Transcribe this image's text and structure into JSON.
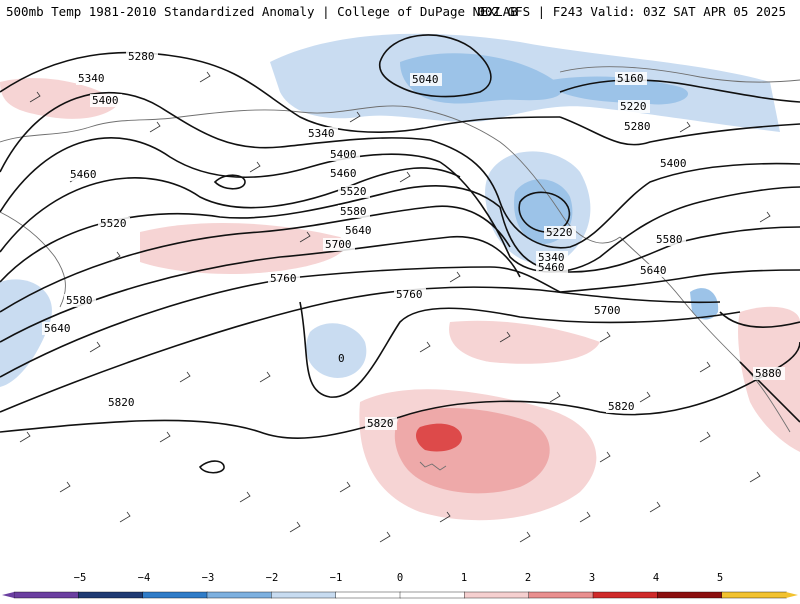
{
  "header": {
    "left_title": "500mb Temp 1981-2010 Standardized Anomaly | College of DuPage NEXLAB",
    "right_title": "00Z GFS | F243 Valid: 03Z SAT APR 05 2025"
  },
  "map": {
    "field": "500mb Temp Standardized Anomaly",
    "contour_labels": [
      "5280",
      "5340",
      "5400",
      "5460",
      "5520",
      "5580",
      "5640",
      "5040",
      "5160",
      "5220",
      "5280",
      "5340",
      "5400",
      "5460",
      "5520",
      "5580",
      "5640",
      "5700",
      "5760",
      "5760",
      "5700",
      "5220",
      "5340",
      "5460",
      "5400",
      "5580",
      "5640",
      "5820",
      "5820",
      "5820",
      "5880"
    ],
    "low_marker": "0",
    "anomaly_colors": {
      "neg5": "#6a3d9a",
      "neg4": "#233a74",
      "neg3": "#3b82c9",
      "neg2": "#7fb2e0",
      "neg1": "#c9dcf1",
      "zero": "#ffffff",
      "pos1": "#f6d4d4",
      "pos2": "#eea9a9",
      "pos3": "#dd4a4a",
      "pos4": "#b01a1a",
      "pos5": "#7a0c0c"
    }
  },
  "colorbar": {
    "ticks": [
      "−5",
      "−4",
      "−3",
      "−2",
      "−1",
      "0",
      "1",
      "2",
      "3",
      "4",
      "5"
    ],
    "colors": [
      "#6b3fa0",
      "#1f3b73",
      "#2f7cc8",
      "#7db0df",
      "#c7dbf0",
      "#ffffff",
      "#ffffff",
      "#f5cfcf",
      "#e98f8f",
      "#cf2a2a",
      "#8b0f0f",
      "#f2c230"
    ]
  }
}
